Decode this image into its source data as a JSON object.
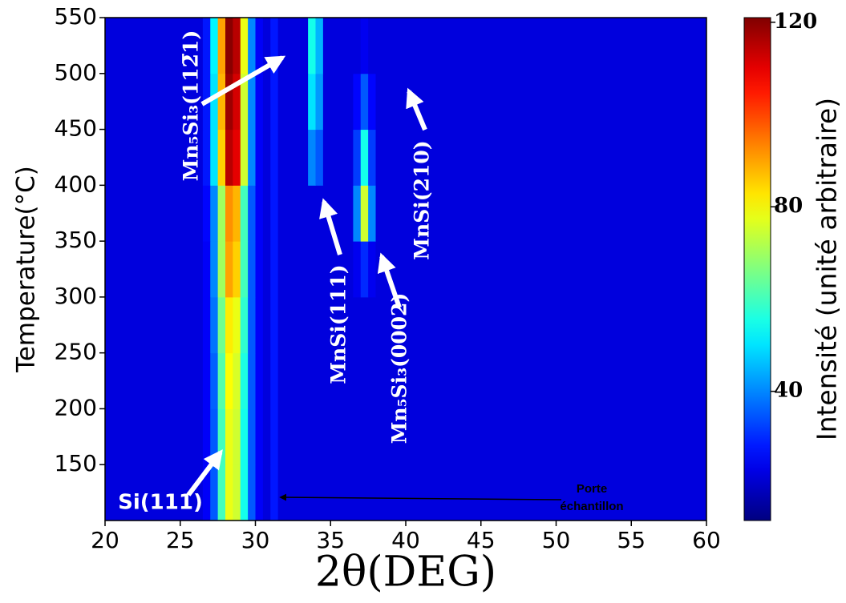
{
  "chart_data": {
    "type": "heatmap",
    "xlabel": "2θ(DEG)",
    "ylabel": "Temperature(°C)",
    "colorbar_label": "Intensité (unité arbitraire)",
    "colormap": "jet",
    "x": [
      20,
      26,
      26.5,
      27,
      27.5,
      28,
      28.5,
      29,
      29.5,
      30,
      30.5,
      31,
      31.5,
      32,
      32.5,
      33,
      33.5,
      34,
      34.5,
      35,
      35.5,
      36,
      36.5,
      37,
      37.5,
      38,
      38.5,
      39,
      60
    ],
    "y": [
      100,
      150,
      200,
      250,
      300,
      350,
      400,
      450,
      500,
      550
    ],
    "z": [
      [
        22,
        22,
        25,
        35,
        60,
        78,
        75,
        55,
        35,
        25,
        22,
        28,
        22,
        22,
        22,
        22,
        22,
        22,
        22,
        22,
        22,
        22,
        22,
        22,
        22,
        22,
        22,
        22
      ],
      [
        22,
        22,
        25,
        35,
        60,
        78,
        75,
        55,
        35,
        25,
        22,
        28,
        22,
        22,
        22,
        22,
        22,
        22,
        22,
        22,
        22,
        22,
        22,
        22,
        22,
        22,
        22,
        22
      ],
      [
        22,
        22,
        25,
        36,
        62,
        80,
        76,
        56,
        35,
        25,
        22,
        28,
        22,
        22,
        22,
        22,
        22,
        22,
        22,
        22,
        22,
        22,
        22,
        22,
        22,
        22,
        22,
        22
      ],
      [
        22,
        22,
        25,
        38,
        65,
        82,
        78,
        58,
        35,
        25,
        22,
        28,
        22,
        22,
        22,
        22,
        22,
        22,
        22,
        22,
        22,
        22,
        22,
        22,
        22,
        22,
        22,
        22
      ],
      [
        22,
        22,
        25,
        40,
        70,
        90,
        85,
        60,
        35,
        25,
        22,
        28,
        22,
        22,
        22,
        22,
        22,
        22,
        22,
        22,
        22,
        22,
        24,
        30,
        24,
        22,
        22,
        22
      ],
      [
        22,
        22,
        26,
        40,
        70,
        92,
        88,
        60,
        35,
        25,
        22,
        28,
        22,
        22,
        22,
        22,
        22,
        22,
        22,
        22,
        22,
        22,
        40,
        75,
        40,
        22,
        22,
        22
      ],
      [
        22,
        22,
        28,
        50,
        85,
        115,
        110,
        75,
        40,
        25,
        22,
        28,
        22,
        22,
        22,
        22,
        40,
        35,
        22,
        22,
        22,
        22,
        32,
        55,
        32,
        22,
        22,
        22
      ],
      [
        22,
        22,
        28,
        50,
        88,
        118,
        112,
        75,
        40,
        25,
        22,
        28,
        22,
        22,
        22,
        22,
        50,
        42,
        22,
        22,
        22,
        22,
        26,
        35,
        26,
        22,
        22,
        22
      ],
      [
        22,
        22,
        28,
        52,
        90,
        120,
        115,
        78,
        40,
        25,
        22,
        28,
        22,
        22,
        22,
        22,
        55,
        45,
        22,
        22,
        22,
        22,
        22,
        24,
        22,
        22,
        22,
        22
      ]
    ],
    "xlim": [
      20,
      60
    ],
    "ylim": [
      100,
      550
    ],
    "zlim": [
      12,
      121
    ],
    "xticks": [
      20,
      25,
      30,
      35,
      40,
      45,
      50,
      55,
      60
    ],
    "yticks": [
      150,
      200,
      250,
      300,
      350,
      400,
      450,
      500,
      550
    ],
    "zticks": [
      40,
      80,
      120
    ],
    "annotations": [
      "Si(111)",
      "Mn₅Si₃(112̅1)",
      "MnSi(111)",
      "Mn₅Si₃(0002)",
      "MnSi(210)",
      "Porte",
      "échantillon"
    ]
  }
}
